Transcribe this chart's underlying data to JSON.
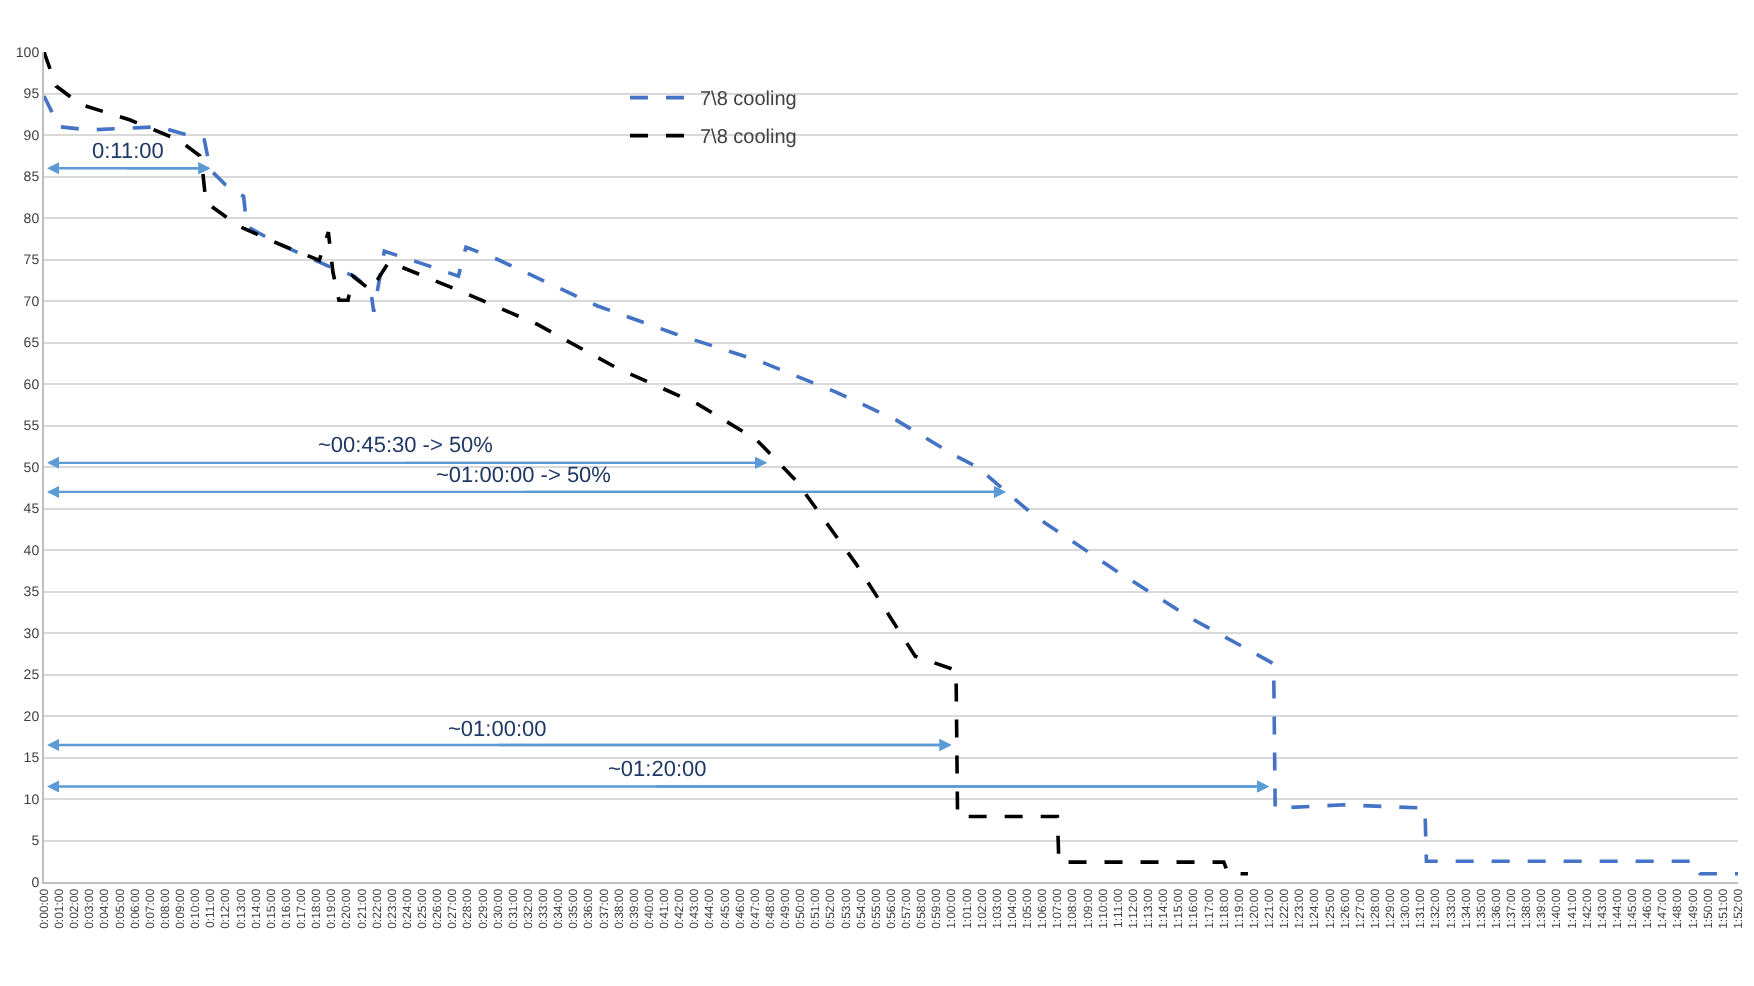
{
  "chart_data": {
    "type": "line",
    "line_style": "dashed",
    "marker": "none",
    "grid": "y",
    "legend": "top",
    "series": [
      {
        "name": "7\\8 cooling",
        "color": "#4472c4",
        "x": [
          0,
          1,
          3,
          7.6,
          10.6,
          11,
          12,
          13.2,
          13.4,
          15.5,
          18.8,
          20.5,
          21.6,
          21.8,
          22.5,
          25,
          27.4,
          27.9,
          30,
          36.6,
          41.8,
          47.1,
          52.4,
          56.3,
          60.3,
          61.7,
          65.5,
          70.8,
          76,
          81.3,
          81.4,
          86,
          91.3,
          91.4,
          109.2,
          109.5,
          112
        ],
        "values": [
          94.7,
          91,
          90.6,
          91,
          89.4,
          85.8,
          84,
          82.6,
          79,
          76.9,
          74.2,
          73,
          71.3,
          68.7,
          76,
          74.5,
          73,
          76.5,
          75,
          69.4,
          66,
          62.9,
          59,
          55.7,
          51.3,
          50,
          44.1,
          37.6,
          31.6,
          26.3,
          8.9,
          9.3,
          8.9,
          2.5,
          2.5,
          1,
          1
        ]
      },
      {
        "name": "7\\8 cooling",
        "color": "#000000",
        "x": [
          0,
          0.8,
          2.4,
          5.7,
          8.9,
          10.3,
          10.5,
          10.7,
          12.9,
          15.5,
          18.2,
          18.8,
          19.1,
          19.5,
          20.1,
          20.4,
          21.6,
          22.8,
          27.4,
          32.6,
          37.9,
          43.2,
          47.1,
          49.7,
          53.7,
          57.6,
          60.3,
          60.4,
          67,
          67.1,
          78,
          78.3,
          79.6
        ],
        "values": [
          100,
          95.9,
          93.7,
          91.8,
          89.4,
          87.5,
          85.5,
          81.9,
          79,
          76.9,
          74.9,
          78.3,
          73.5,
          70.1,
          70.1,
          73,
          71.3,
          74.7,
          71.3,
          67.2,
          61.9,
          57.6,
          53.3,
          48.4,
          38.3,
          27.2,
          25.5,
          7.9,
          7.9,
          2.4,
          2.4,
          1,
          1
        ]
      }
    ],
    "annotations": [
      {
        "text": "0:11:00",
        "x": 11,
        "y": 86
      },
      {
        "text": "~00:45:30 -> 50%",
        "x": 47.8,
        "y": 50.5
      },
      {
        "text": "~01:00:00 -> 50%",
        "x": 63.6,
        "y": 47
      },
      {
        "text": "~01:00:00",
        "x": 60,
        "y": 16.5
      },
      {
        "text": "~01:20:00",
        "x": 81,
        "y": 11.5
      }
    ],
    "xlim": [
      0,
      112
    ],
    "ylim": [
      0,
      100
    ],
    "yticks": [
      0,
      5,
      10,
      15,
      20,
      25,
      30,
      35,
      40,
      45,
      50,
      55,
      60,
      65,
      70,
      75,
      80,
      85,
      90,
      95,
      100
    ],
    "xticks": [
      {
        "value": 0,
        "label": "0:00:00"
      },
      {
        "value": 1,
        "label": "0:01:00"
      },
      {
        "value": 2,
        "label": "0:02:00"
      },
      {
        "value": 3,
        "label": "0:03:00"
      },
      {
        "value": 4,
        "label": "0:04:00"
      },
      {
        "value": 5,
        "label": "0:05:00"
      },
      {
        "value": 6,
        "label": "0:06:00"
      },
      {
        "value": 7,
        "label": "0:07:00"
      },
      {
        "value": 8,
        "label": "0:08:00"
      },
      {
        "value": 9,
        "label": "0:09:00"
      },
      {
        "value": 10,
        "label": "0:10:00"
      },
      {
        "value": 11,
        "label": "0:11:00"
      },
      {
        "value": 12,
        "label": "0:12:00"
      },
      {
        "value": 13,
        "label": "0:13:00"
      },
      {
        "value": 14,
        "label": "0:14:00"
      },
      {
        "value": 15,
        "label": "0:15:00"
      },
      {
        "value": 16,
        "label": "0:16:00"
      },
      {
        "value": 17,
        "label": "0:17:00"
      },
      {
        "value": 18,
        "label": "0:18:00"
      },
      {
        "value": 19,
        "label": "0:19:00"
      },
      {
        "value": 20,
        "label": "0:20:00"
      },
      {
        "value": 21,
        "label": "0:21:00"
      },
      {
        "value": 22,
        "label": "0:22:00"
      },
      {
        "value": 23,
        "label": "0:23:00"
      },
      {
        "value": 24,
        "label": "0:24:00"
      },
      {
        "value": 25,
        "label": "0:25:00"
      },
      {
        "value": 26,
        "label": "0:26:00"
      },
      {
        "value": 27,
        "label": "0:27:00"
      },
      {
        "value": 28,
        "label": "0:28:00"
      },
      {
        "value": 29,
        "label": "0:29:00"
      },
      {
        "value": 30,
        "label": "0:30:00"
      },
      {
        "value": 31,
        "label": "0:31:00"
      },
      {
        "value": 32,
        "label": "0:32:00"
      },
      {
        "value": 33,
        "label": "0:33:00"
      },
      {
        "value": 34,
        "label": "0:34:00"
      },
      {
        "value": 35,
        "label": "0:35:00"
      },
      {
        "value": 36,
        "label": "0:36:00"
      },
      {
        "value": 37,
        "label": "0:37:00"
      },
      {
        "value": 38,
        "label": "0:38:00"
      },
      {
        "value": 39,
        "label": "0:39:00"
      },
      {
        "value": 40,
        "label": "0:40:00"
      },
      {
        "value": 41,
        "label": "0:41:00"
      },
      {
        "value": 42,
        "label": "0:42:00"
      },
      {
        "value": 43,
        "label": "0:43:00"
      },
      {
        "value": 44,
        "label": "0:44:00"
      },
      {
        "value": 45,
        "label": "0:45:00"
      },
      {
        "value": 46,
        "label": "0:46:00"
      },
      {
        "value": 47,
        "label": "0:47:00"
      },
      {
        "value": 48,
        "label": "0:48:00"
      },
      {
        "value": 49,
        "label": "0:49:00"
      },
      {
        "value": 50,
        "label": "0:50:00"
      },
      {
        "value": 51,
        "label": "0:51:00"
      },
      {
        "value": 52,
        "label": "0:52:00"
      },
      {
        "value": 53,
        "label": "0:53:00"
      },
      {
        "value": 54,
        "label": "0:54:00"
      },
      {
        "value": 55,
        "label": "0:55:00"
      },
      {
        "value": 56,
        "label": "0:56:00"
      },
      {
        "value": 57,
        "label": "0:57:00"
      },
      {
        "value": 58,
        "label": "0:58:00"
      },
      {
        "value": 59,
        "label": "0:59:00"
      },
      {
        "value": 60,
        "label": "1:00:00"
      },
      {
        "value": 61,
        "label": "1:01:00"
      },
      {
        "value": 62,
        "label": "1:02:00"
      },
      {
        "value": 63,
        "label": "1:03:00"
      },
      {
        "value": 64,
        "label": "1:04:00"
      },
      {
        "value": 65,
        "label": "1:05:00"
      },
      {
        "value": 66,
        "label": "1:06:00"
      },
      {
        "value": 67,
        "label": "1:07:00"
      },
      {
        "value": 68,
        "label": "1:08:00"
      },
      {
        "value": 69,
        "label": "1:09:00"
      },
      {
        "value": 70,
        "label": "1:10:00"
      },
      {
        "value": 71,
        "label": "1:11:00"
      },
      {
        "value": 72,
        "label": "1:12:00"
      },
      {
        "value": 73,
        "label": "1:13:00"
      },
      {
        "value": 74,
        "label": "1:14:00"
      },
      {
        "value": 75,
        "label": "1:15:00"
      },
      {
        "value": 76,
        "label": "1:16:00"
      },
      {
        "value": 77,
        "label": "1:17:00"
      },
      {
        "value": 78,
        "label": "1:18:00"
      },
      {
        "value": 79,
        "label": "1:19:00"
      },
      {
        "value": 80,
        "label": "1:20:00"
      },
      {
        "value": 81,
        "label": "1:21:00"
      },
      {
        "value": 82,
        "label": "1:22:00"
      },
      {
        "value": 83,
        "label": "1:23:00"
      },
      {
        "value": 84,
        "label": "1:24:00"
      },
      {
        "value": 85,
        "label": "1:25:00"
      },
      {
        "value": 86,
        "label": "1:26:00"
      },
      {
        "value": 87,
        "label": "1:27:00"
      },
      {
        "value": 88,
        "label": "1:28:00"
      },
      {
        "value": 89,
        "label": "1:29:00"
      },
      {
        "value": 90,
        "label": "1:30:00"
      },
      {
        "value": 91,
        "label": "1:31:00"
      },
      {
        "value": 92,
        "label": "1:32:00"
      },
      {
        "value": 93,
        "label": "1:33:00"
      },
      {
        "value": 94,
        "label": "1:34:00"
      },
      {
        "value": 95,
        "label": "1:35:00"
      },
      {
        "value": 96,
        "label": "1:36:00"
      },
      {
        "value": 97,
        "label": "1:37:00"
      },
      {
        "value": 98,
        "label": "1:38:00"
      },
      {
        "value": 99,
        "label": "1:39:00"
      },
      {
        "value": 100,
        "label": "1:40:00"
      },
      {
        "value": 101,
        "label": "1:41:00"
      },
      {
        "value": 102,
        "label": "1:42:00"
      },
      {
        "value": 103,
        "label": "1:43:00"
      },
      {
        "value": 104,
        "label": "1:44:00"
      },
      {
        "value": 105,
        "label": "1:45:00"
      },
      {
        "value": 106,
        "label": "1:46:00"
      },
      {
        "value": 107,
        "label": "1:47:00"
      },
      {
        "value": 108,
        "label": "1:48:00"
      },
      {
        "value": 109,
        "label": "1:49:00"
      },
      {
        "value": 110,
        "label": "1:50:00"
      },
      {
        "value": 111,
        "label": "1:51:00"
      },
      {
        "value": 112,
        "label": "1:52:00"
      }
    ]
  }
}
